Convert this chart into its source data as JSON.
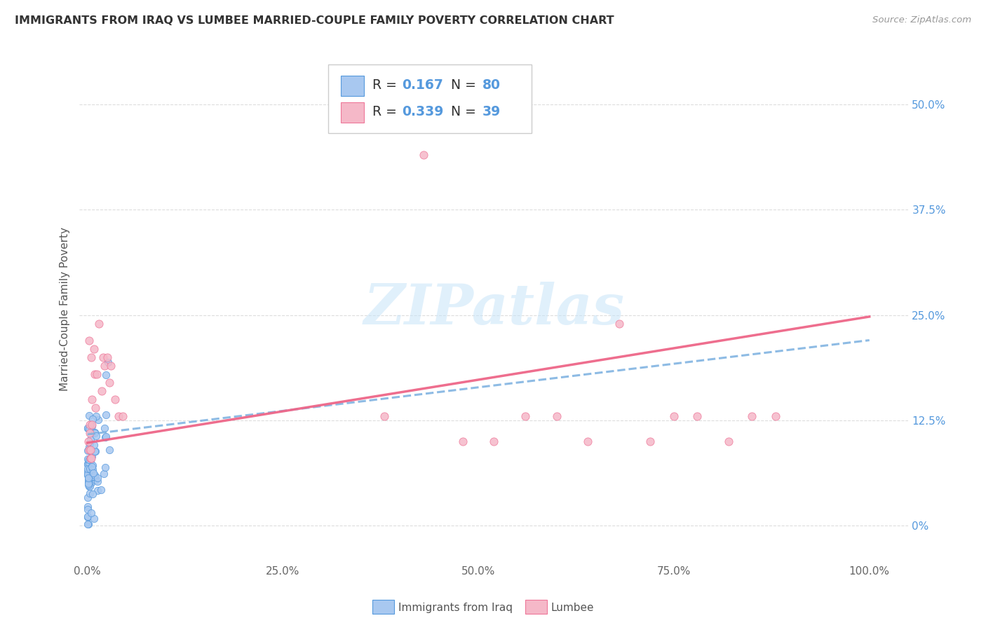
{
  "title": "IMMIGRANTS FROM IRAQ VS LUMBEE MARRIED-COUPLE FAMILY POVERTY CORRELATION CHART",
  "source": "Source: ZipAtlas.com",
  "ylabel": "Married-Couple Family Poverty",
  "ytick_vals": [
    0.0,
    0.125,
    0.25,
    0.375,
    0.5
  ],
  "ytick_labels": [
    "0%",
    "12.5%",
    "25.0%",
    "37.5%",
    "50.0%"
  ],
  "xtick_vals": [
    0.0,
    0.25,
    0.5,
    0.75,
    1.0
  ],
  "xtick_labels": [
    "0.0%",
    "25.0%",
    "50.0%",
    "75.0%",
    "100.0%"
  ],
  "xlim": [
    -0.01,
    1.05
  ],
  "ylim": [
    -0.045,
    0.56
  ],
  "blue_R": "0.167",
  "blue_N": "80",
  "pink_R": "0.339",
  "pink_N": "39",
  "blue_fill": "#a8c8f0",
  "pink_fill": "#f5b8c8",
  "blue_edge": "#5599dd",
  "pink_edge": "#ee7799",
  "blue_line": "#7ab0e0",
  "pink_line": "#ee6688",
  "text_dark": "#333333",
  "text_blue": "#5599dd",
  "text_gray": "#999999",
  "grid_color": "#dddddd",
  "bg_color": "#ffffff",
  "watermark": "ZIPatlas",
  "legend_label_blue": "Immigrants from Iraq",
  "legend_label_pink": "Lumbee",
  "blue_line_x0": 0.0,
  "blue_line_x1": 1.0,
  "blue_line_y0": 0.108,
  "blue_line_y1": 0.22,
  "pink_line_x0": 0.0,
  "pink_line_x1": 1.0,
  "pink_line_y0": 0.098,
  "pink_line_y1": 0.248
}
